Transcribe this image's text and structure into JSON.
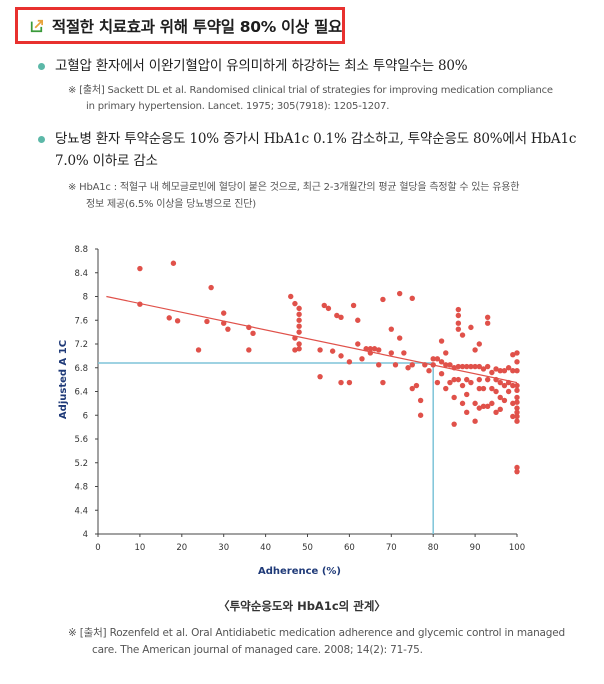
{
  "header": {
    "title": "적절한 치료효과 위해 투약일 80% 이상 필요",
    "icon": "arrow-out-icon",
    "border_color": "#e8312f",
    "icon_color": "#3a9a3a"
  },
  "bullets": [
    {
      "line1": "고혈압 환자에서 이완기혈압이 유의미하게 하강하는 최소 투약일수는 80%",
      "line2": "",
      "note1": "※ [출처] Sackett DL et al. Randomised clinical trial of strategies for improving medication compliance",
      "note2": "in primary hypertension. Lancet. 1975; 305(7918): 1205-1207."
    },
    {
      "line1": "당뇨병 환자 투약순응도 10% 증가시 HbA1c 0.1% 감소하고, 투약순응도 80%에서 HbA1c",
      "line2": "7.0% 이하로 감소",
      "note1": "※ HbA1c : 적혈구 내 헤모글로빈에 혈당이 붙은 것으로, 최근 2-3개월간의 평균 혈당을 측정할 수 있는 유용한",
      "note2": "정보 제공(6.5% 이상을 당뇨병으로 진단)"
    }
  ],
  "bullet_color": "#5cb8a8",
  "chart_data": {
    "type": "scatter",
    "xlabel": "Adherence (%)",
    "ylabel": "Adjusted A 1C",
    "xlim": [
      0,
      100
    ],
    "ylim": [
      4,
      8.8
    ],
    "xticks": [
      0,
      10,
      20,
      30,
      40,
      50,
      60,
      70,
      80,
      90,
      100
    ],
    "yticks": [
      4,
      4.4,
      4.8,
      5.2,
      5.6,
      6,
      6.4,
      6.8,
      7.2,
      7.6,
      8,
      8.4,
      8.8
    ],
    "point_color": "#e0514a",
    "trend_color": "#e0514a",
    "reference_color": "#7ec4d8",
    "trendline": {
      "x": [
        2,
        100
      ],
      "y": [
        8.0,
        6.55
      ]
    },
    "reference": {
      "x": 80,
      "y": 6.88
    },
    "points": [
      [
        10,
        8.47
      ],
      [
        10,
        7.87
      ],
      [
        18,
        8.56
      ],
      [
        17,
        7.64
      ],
      [
        19,
        7.59
      ],
      [
        26,
        7.58
      ],
      [
        27,
        8.15
      ],
      [
        24,
        7.1
      ],
      [
        30,
        7.72
      ],
      [
        31,
        7.45
      ],
      [
        30,
        7.55
      ],
      [
        36,
        7.1
      ],
      [
        36,
        7.48
      ],
      [
        37,
        7.38
      ],
      [
        46,
        8.0
      ],
      [
        47,
        7.88
      ],
      [
        48,
        7.8
      ],
      [
        48,
        7.7
      ],
      [
        48,
        7.6
      ],
      [
        48,
        7.5
      ],
      [
        48,
        7.4
      ],
      [
        47,
        7.3
      ],
      [
        48,
        7.2
      ],
      [
        48,
        7.12
      ],
      [
        47,
        7.1
      ],
      [
        53,
        7.1
      ],
      [
        53,
        6.65
      ],
      [
        54,
        7.85
      ],
      [
        55,
        7.8
      ],
      [
        56,
        7.08
      ],
      [
        57,
        7.68
      ],
      [
        58,
        7.65
      ],
      [
        58,
        7.0
      ],
      [
        58,
        6.55
      ],
      [
        60,
        6.9
      ],
      [
        60,
        6.55
      ],
      [
        61,
        7.85
      ],
      [
        62,
        7.6
      ],
      [
        62,
        7.2
      ],
      [
        63,
        6.95
      ],
      [
        64,
        7.12
      ],
      [
        65,
        7.12
      ],
      [
        65,
        7.05
      ],
      [
        66,
        7.12
      ],
      [
        67,
        7.1
      ],
      [
        67,
        6.85
      ],
      [
        68,
        6.55
      ],
      [
        68,
        7.95
      ],
      [
        70,
        7.45
      ],
      [
        70,
        7.05
      ],
      [
        71,
        6.85
      ],
      [
        72,
        8.05
      ],
      [
        72,
        7.3
      ],
      [
        73,
        7.05
      ],
      [
        74,
        6.8
      ],
      [
        75,
        6.85
      ],
      [
        75,
        6.45
      ],
      [
        75,
        7.97
      ],
      [
        76,
        6.5
      ],
      [
        77,
        6.25
      ],
      [
        77,
        6.0
      ],
      [
        78,
        6.85
      ],
      [
        79,
        6.75
      ],
      [
        80,
        6.95
      ],
      [
        80,
        6.85
      ],
      [
        81,
        6.95
      ],
      [
        81,
        6.55
      ],
      [
        82,
        7.25
      ],
      [
        82,
        6.9
      ],
      [
        82,
        6.7
      ],
      [
        83,
        7.05
      ],
      [
        83,
        6.85
      ],
      [
        83,
        6.45
      ],
      [
        84,
        6.85
      ],
      [
        84,
        6.55
      ],
      [
        85,
        6.8
      ],
      [
        85,
        6.6
      ],
      [
        85,
        6.3
      ],
      [
        85,
        5.85
      ],
      [
        86,
        7.78
      ],
      [
        86,
        7.68
      ],
      [
        86,
        7.55
      ],
      [
        86,
        7.45
      ],
      [
        86,
        6.82
      ],
      [
        86,
        6.6
      ],
      [
        87,
        7.35
      ],
      [
        87,
        6.82
      ],
      [
        87,
        6.5
      ],
      [
        87,
        6.2
      ],
      [
        88,
        6.82
      ],
      [
        88,
        6.6
      ],
      [
        88,
        6.35
      ],
      [
        88,
        6.05
      ],
      [
        89,
        7.48
      ],
      [
        89,
        6.82
      ],
      [
        89,
        6.55
      ],
      [
        90,
        7.1
      ],
      [
        90,
        6.82
      ],
      [
        90,
        6.2
      ],
      [
        90,
        5.9
      ],
      [
        91,
        7.2
      ],
      [
        91,
        6.82
      ],
      [
        91,
        6.6
      ],
      [
        91,
        6.45
      ],
      [
        91,
        6.12
      ],
      [
        92,
        6.78
      ],
      [
        92,
        6.45
      ],
      [
        92,
        6.15
      ],
      [
        93,
        7.65
      ],
      [
        93,
        7.55
      ],
      [
        93,
        6.82
      ],
      [
        93,
        6.6
      ],
      [
        93,
        6.15
      ],
      [
        94,
        6.72
      ],
      [
        94,
        6.45
      ],
      [
        94,
        6.2
      ],
      [
        95,
        6.78
      ],
      [
        95,
        6.6
      ],
      [
        95,
        6.4
      ],
      [
        95,
        6.05
      ],
      [
        96,
        6.75
      ],
      [
        96,
        6.55
      ],
      [
        96,
        6.3
      ],
      [
        96,
        6.1
      ],
      [
        97,
        6.75
      ],
      [
        97,
        6.5
      ],
      [
        97,
        6.25
      ],
      [
        98,
        6.8
      ],
      [
        98,
        6.55
      ],
      [
        98,
        6.4
      ],
      [
        99,
        7.02
      ],
      [
        99,
        6.75
      ],
      [
        99,
        6.5
      ],
      [
        99,
        6.2
      ],
      [
        99,
        5.98
      ],
      [
        100,
        7.05
      ],
      [
        100,
        6.9
      ],
      [
        100,
        6.75
      ],
      [
        100,
        6.5
      ],
      [
        100,
        6.42
      ],
      [
        100,
        6.3
      ],
      [
        100,
        6.22
      ],
      [
        100,
        6.12
      ],
      [
        100,
        6.05
      ],
      [
        100,
        5.98
      ],
      [
        100,
        5.9
      ],
      [
        100,
        5.12
      ],
      [
        100,
        5.05
      ]
    ]
  },
  "caption": "〈투약순응도와 HbA1c의 관계〉",
  "source": {
    "line1": "※ [출처] Rozenfeld et al. Oral Antidiabetic medication adherence and glycemic control in managed",
    "line2": "care. The American journal of managed care. 2008; 14(2): 71-75."
  }
}
